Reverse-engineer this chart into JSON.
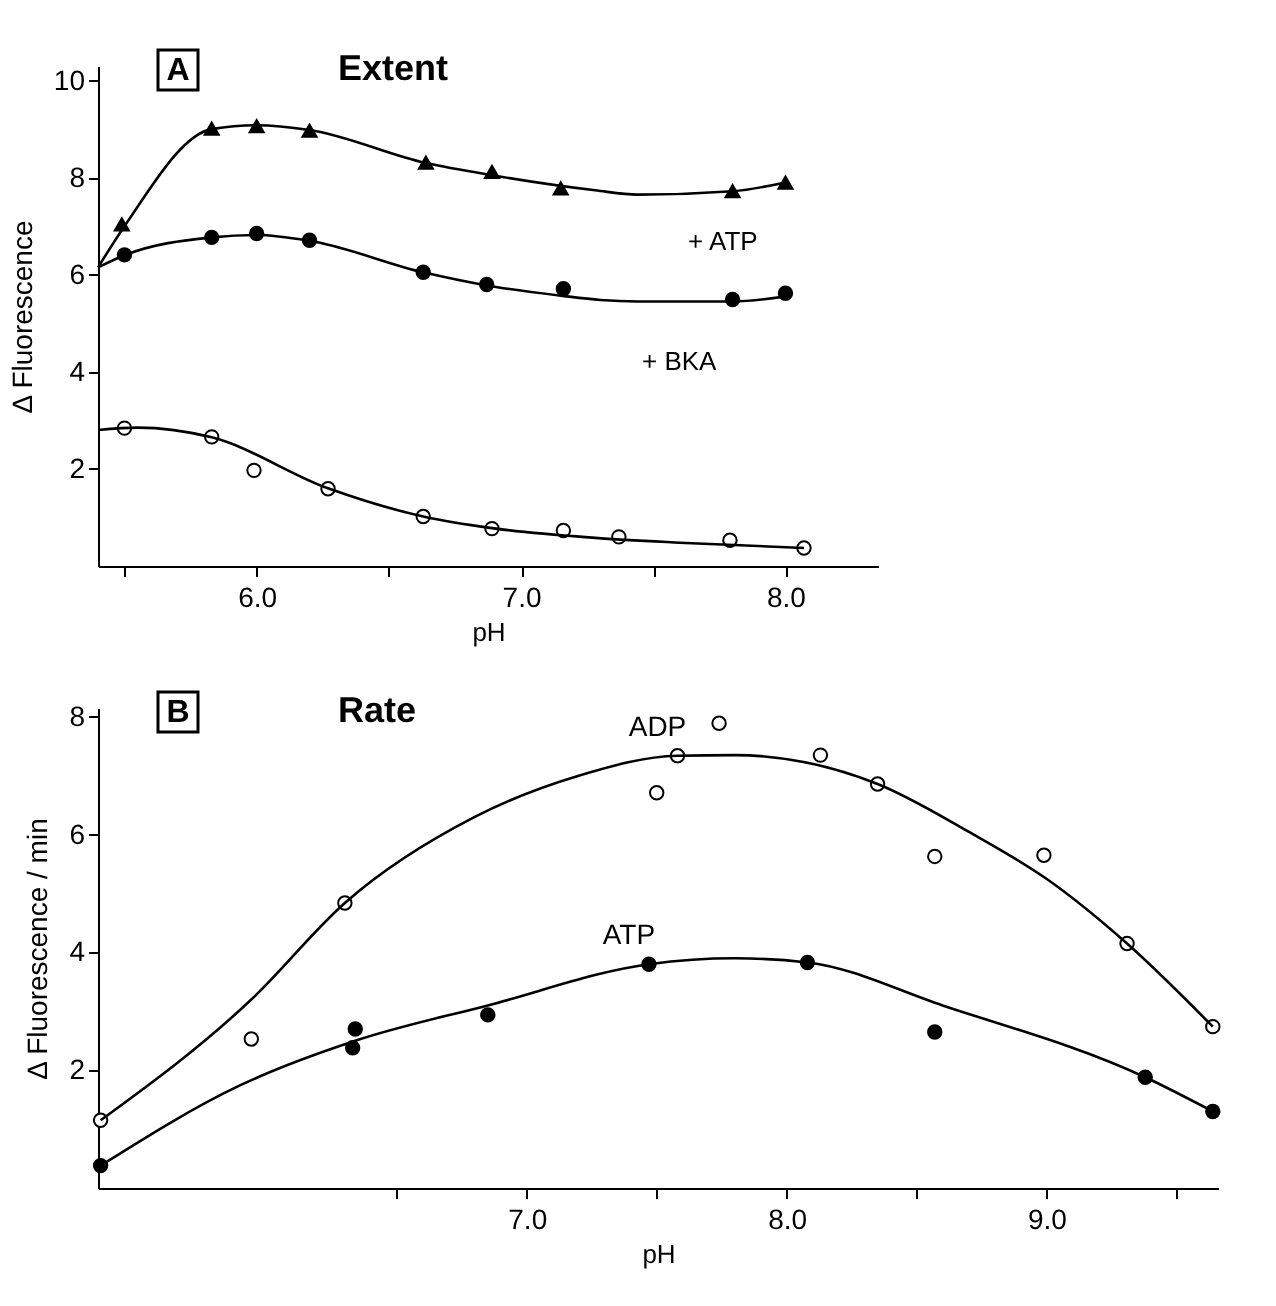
{
  "chart_data": [
    {
      "type": "line",
      "title": "Extent",
      "xlabel": "pH",
      "ylabel": "Δ Fluorescence",
      "xlim": [
        5.4,
        8.35
      ],
      "ylim": [
        0,
        10.3
      ],
      "xticks": [
        {
          "value": 5.5,
          "label": null
        },
        {
          "value": 6,
          "label": "6.0"
        },
        {
          "value": 6.5,
          "label": null
        },
        {
          "value": 7,
          "label": "7.0"
        },
        {
          "value": 7.5,
          "label": null
        },
        {
          "value": 8,
          "label": "8.0"
        }
      ],
      "yticks": [
        2,
        4,
        6,
        8,
        10
      ],
      "grid": false,
      "annotations": [
        "A",
        "+ ATP",
        "+ BKA"
      ],
      "series": [
        {
          "type": "scatter",
          "marker": "triangle",
          "color": "#000000",
          "x": [
            5.49,
            5.83,
            6.0,
            6.2,
            6.64,
            6.89,
            7.15,
            7.8,
            8.0
          ],
          "values": [
            7.04,
            9.01,
            9.06,
            8.97,
            8.31,
            8.12,
            7.78,
            7.72,
            7.9
          ]
        },
        {
          "type": "scatter",
          "marker": "circle",
          "color": "#000000",
          "x": [
            5.5,
            5.83,
            6.0,
            6.2,
            6.63,
            6.87,
            7.16,
            7.8,
            8.0
          ],
          "values": [
            6.41,
            6.77,
            6.85,
            6.71,
            6.05,
            5.8,
            5.71,
            5.49,
            5.62
          ]
        },
        {
          "type": "scatter",
          "marker": "circle",
          "color": "#ffffff",
          "x": [
            5.5,
            5.83,
            5.99,
            6.27,
            6.63,
            6.89,
            7.16,
            7.37,
            7.79,
            8.07
          ],
          "values": [
            2.84,
            2.66,
            1.97,
            1.59,
            1.02,
            0.77,
            0.73,
            0.6,
            0.53,
            0.37
          ]
        },
        {
          "marker": "none",
          "color": "#000000",
          "x": [
            5.4,
            5.5,
            5.83,
            6.0,
            6.2,
            6.64,
            6.89,
            7.28,
            7.44,
            7.8,
            8.0
          ],
          "values": [
            6.15,
            7.0,
            9.0,
            9.08,
            8.98,
            8.3,
            8.05,
            7.74,
            7.65,
            7.72,
            7.9
          ]
        },
        {
          "marker": "none",
          "color": "#000000",
          "x": [
            5.4,
            5.5,
            5.83,
            6.0,
            6.2,
            6.63,
            6.87,
            7.15,
            7.3,
            7.44,
            7.8,
            8.0
          ],
          "values": [
            6.15,
            6.4,
            6.77,
            6.82,
            6.7,
            6.05,
            5.78,
            5.57,
            5.48,
            5.45,
            5.45,
            5.55
          ]
        },
        {
          "marker": "none",
          "color": "#000000",
          "x": [
            5.4,
            5.55,
            5.83,
            6.27,
            6.63,
            6.89,
            7.28,
            7.6,
            8.07
          ],
          "values": [
            2.8,
            2.85,
            2.65,
            1.6,
            1.02,
            0.78,
            0.58,
            0.48,
            0.37
          ]
        }
      ]
    },
    {
      "type": "line",
      "title": "Rate",
      "xlabel": "pH",
      "ylabel": "Δ Fluorescence / min",
      "xlim": [
        5.35,
        9.66
      ],
      "ylim": [
        0,
        8.15
      ],
      "xticks": [
        {
          "value": 6.5,
          "label": null
        },
        {
          "value": 7,
          "label": "7.0"
        },
        {
          "value": 7.5,
          "label": null
        },
        {
          "value": 8,
          "label": "8.0"
        },
        {
          "value": 8.5,
          "label": null
        },
        {
          "value": 9,
          "label": "9.0"
        },
        {
          "value": 9.5,
          "label": null
        }
      ],
      "yticks": [
        2,
        4,
        6,
        8
      ],
      "grid": false,
      "annotations": [
        "B"
      ],
      "series": [
        {
          "type": "scatter",
          "marker": "circle",
          "color": "#ffffff",
          "x": [
            5.36,
            5.94,
            6.3,
            7.5,
            7.58,
            7.74,
            8.13,
            8.35,
            8.57,
            8.99,
            9.31,
            9.64
          ],
          "values": [
            1.15,
            2.53,
            4.84,
            6.71,
            7.34,
            7.89,
            7.35,
            6.86,
            5.63,
            5.65,
            4.15,
            2.74
          ]
        },
        {
          "type": "scatter",
          "marker": "circle",
          "color": "#000000",
          "x": [
            5.36,
            6.34,
            6.33,
            6.85,
            7.47,
            8.08,
            8.57,
            9.38,
            9.64
          ],
          "values": [
            0.38,
            2.7,
            2.38,
            2.94,
            3.8,
            3.83,
            2.65,
            1.88,
            1.3
          ]
        },
        {
          "name": "ADP",
          "marker": "none",
          "color": "#000000",
          "x": [
            5.36,
            5.94,
            6.3,
            6.8,
            7.2,
            7.58,
            7.8,
            8.35,
            8.7,
            9.0,
            9.31,
            9.64
          ],
          "values": [
            1.15,
            3.2,
            4.84,
            6.3,
            7.0,
            7.34,
            7.35,
            6.86,
            6.05,
            5.25,
            4.15,
            2.74
          ]
        },
        {
          "name": "ATP",
          "marker": "none",
          "color": "#000000",
          "x": [
            5.36,
            5.9,
            6.34,
            6.85,
            7.47,
            7.8,
            8.08,
            8.6,
            9.38,
            9.64
          ],
          "values": [
            0.38,
            1.75,
            2.5,
            3.1,
            3.8,
            3.9,
            3.83,
            3.1,
            1.88,
            1.3
          ]
        }
      ]
    }
  ]
}
